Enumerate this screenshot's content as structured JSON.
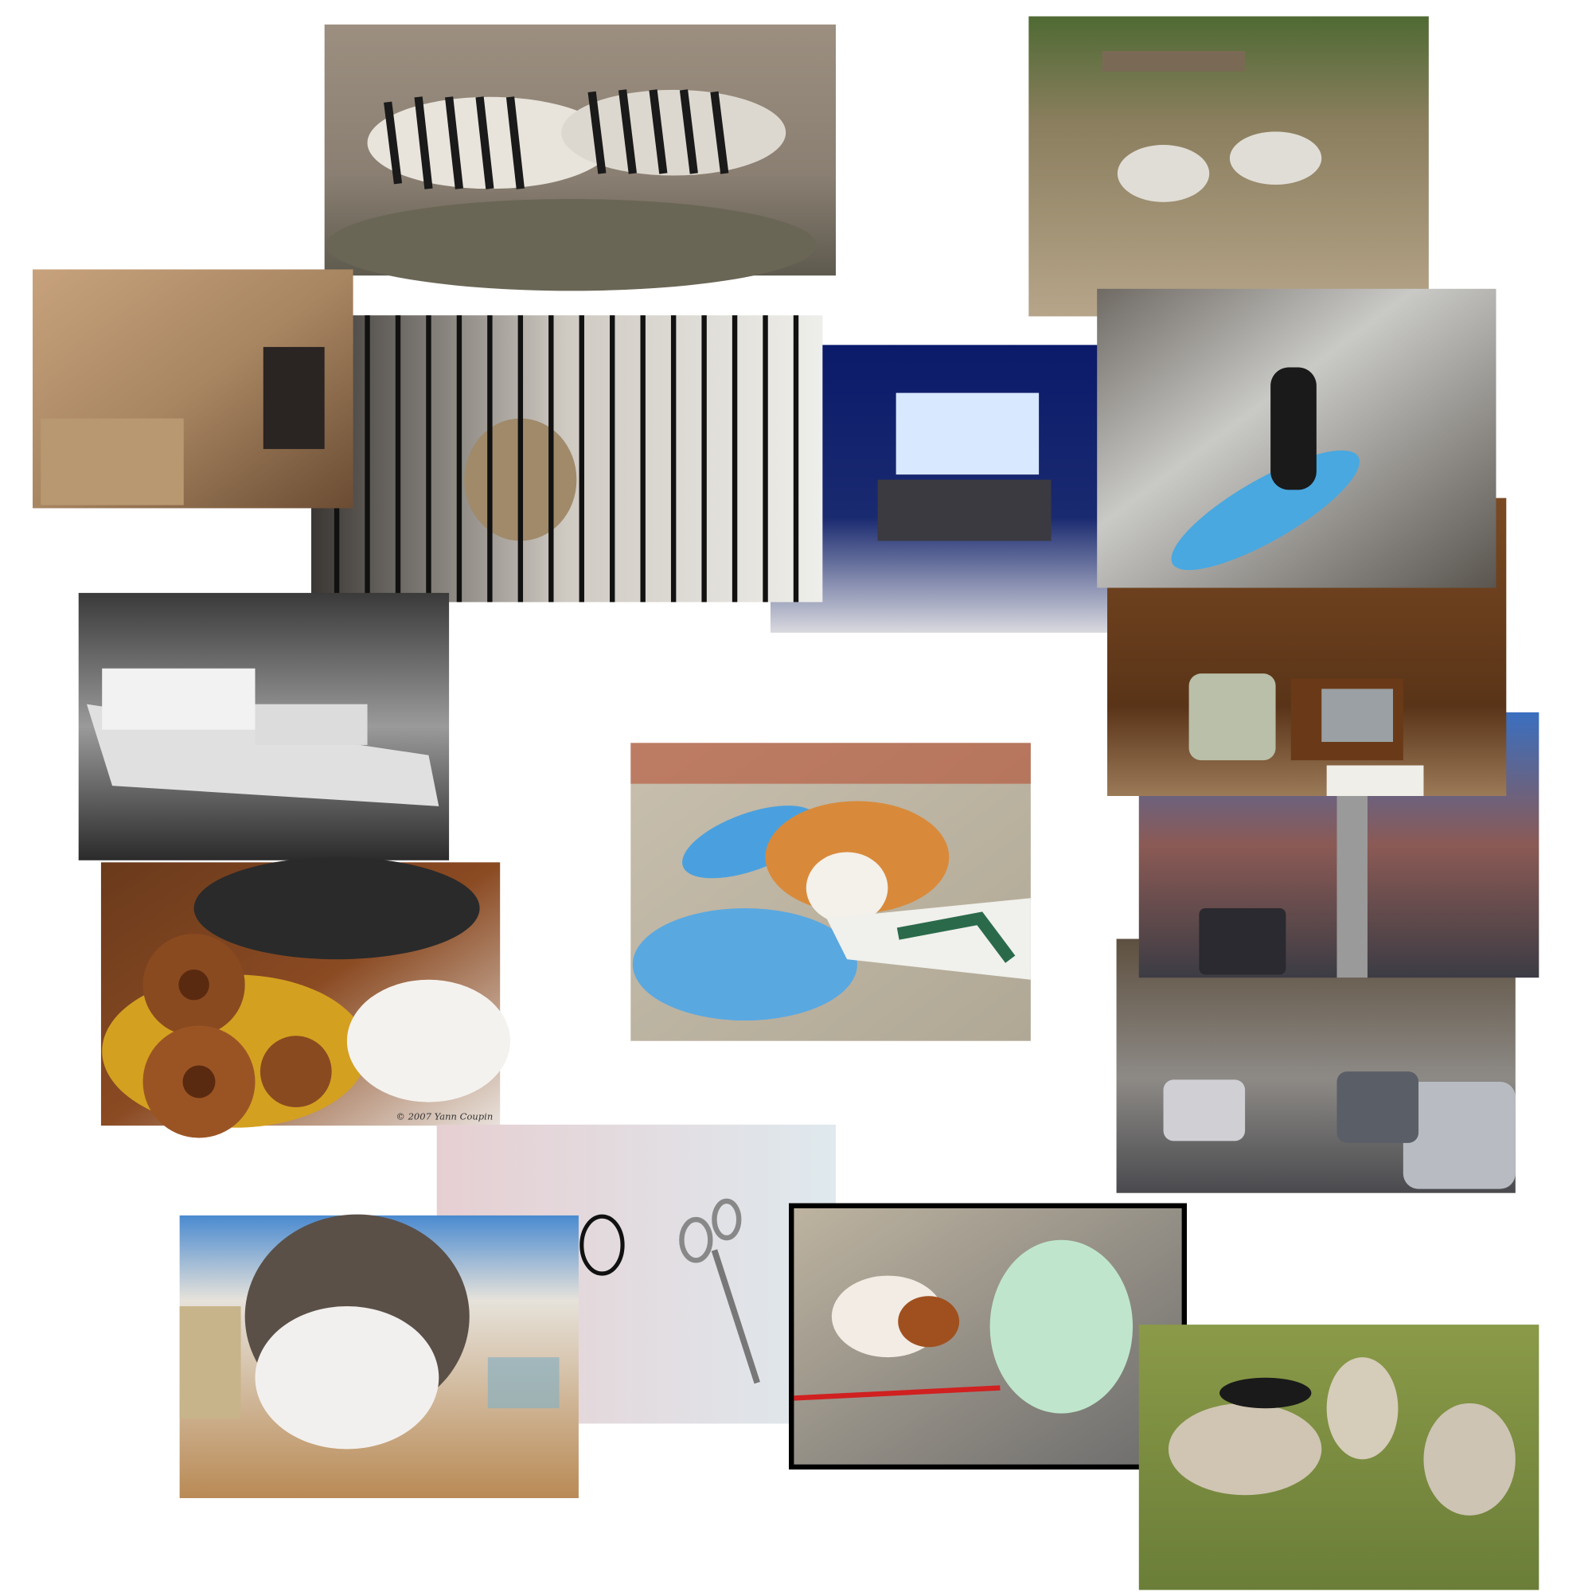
{
  "photo_collage": {
    "watermark": "© 2007 Yann Coupin"
  }
}
